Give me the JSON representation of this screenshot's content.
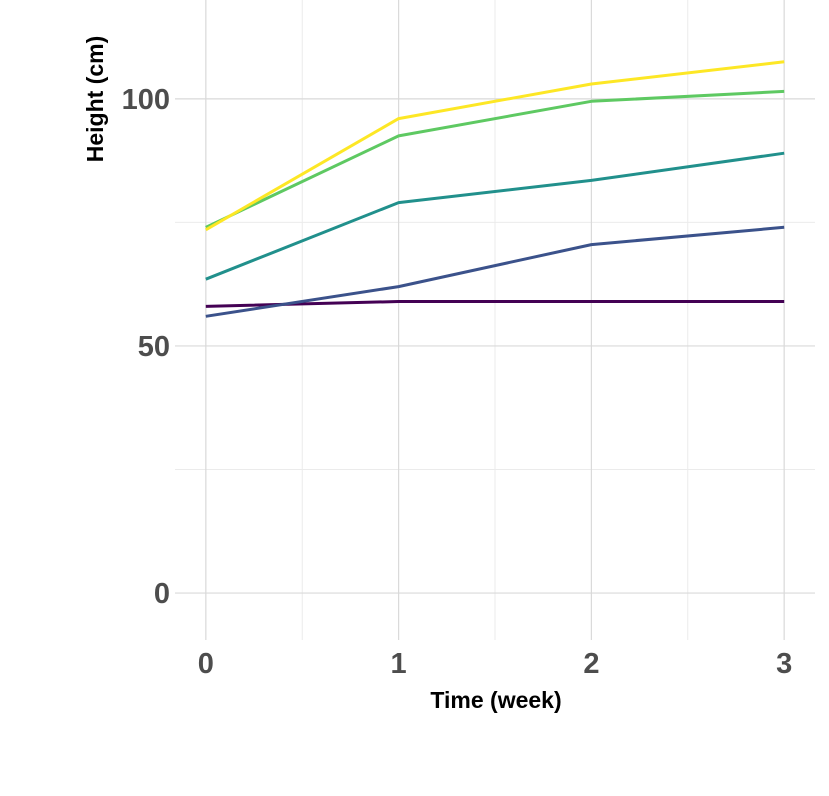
{
  "chart_data": {
    "type": "line",
    "title": "",
    "xlabel": "Time (week)",
    "ylabel": "Height (cm)",
    "x": [
      0,
      1,
      2,
      3
    ],
    "xlim": [
      -0.16,
      3.16
    ],
    "ylim": [
      -9.5,
      120
    ],
    "x_ticks": [
      0,
      1,
      2,
      3
    ],
    "x_minor_ticks": [
      0.5,
      1.5,
      2.5
    ],
    "y_ticks": [
      0,
      50,
      100
    ],
    "y_minor_ticks": [
      25,
      75
    ],
    "grid": true,
    "legend": "none",
    "series": [
      {
        "color": "#440154",
        "values": [
          58,
          59,
          59,
          59
        ]
      },
      {
        "color": "#3b528b",
        "values": [
          56,
          62,
          70.5,
          74
        ]
      },
      {
        "color": "#21908c",
        "values": [
          63.5,
          79,
          83.5,
          89
        ]
      },
      {
        "color": "#5ec962",
        "values": [
          74,
          92.5,
          99.5,
          101.5
        ]
      },
      {
        "color": "#fde725",
        "values": [
          73.5,
          96,
          103,
          107.5
        ]
      }
    ]
  }
}
